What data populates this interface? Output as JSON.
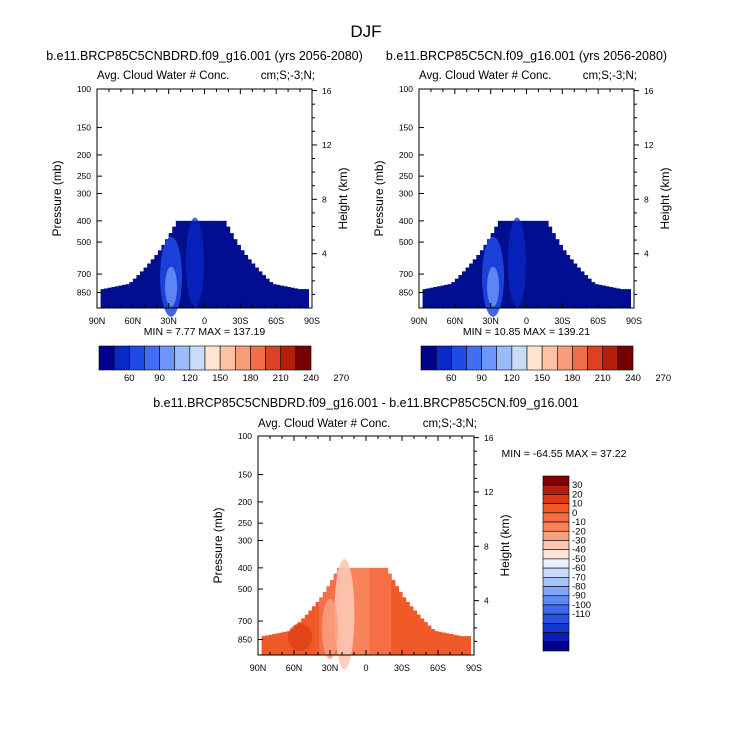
{
  "figure_title": "DJF",
  "colors": {
    "deep_blue": "#000e8f",
    "abs_scale": [
      "#00008c",
      "#0a28c8",
      "#1e4be6",
      "#416ef5",
      "#6e96fa",
      "#9bbaf8",
      "#c8dcf8",
      "#ffe6d2",
      "#fdc3a5",
      "#f89b78",
      "#f06e4b",
      "#dc4123",
      "#b41e0a",
      "#780000"
    ],
    "diff_scale": [
      "#00008c",
      "#0a1eb4",
      "#1437d2",
      "#2850e6",
      "#4169f0",
      "#5f87f5",
      "#82a5fa",
      "#a5c3fa",
      "#c8dcfa",
      "#e6f0fa",
      "#fde6d7",
      "#fcc8b4",
      "#faa082",
      "#f8825a",
      "#f56e46",
      "#f05a28",
      "#dc3c14",
      "#b41e0a",
      "#820000"
    ]
  },
  "chart_data": [
    {
      "id": "panel1",
      "type": "heatmap",
      "title": "b.e11.BRCP85C5CNBDRD.f09_g16.001 (yrs 2056-2080)",
      "subtitle_left": "Avg. Cloud Water # Conc.",
      "subtitle_right": "cm;S;-3;N;",
      "ylabel": "Pressure (mb)",
      "ylabel_right": "Height (km)",
      "xticks": [
        "90N",
        "60N",
        "30N",
        "0",
        "30S",
        "60S",
        "90S"
      ],
      "x_values": [
        90,
        60,
        30,
        0,
        -30,
        -60,
        -90
      ],
      "yticks_left": [
        "100",
        "150",
        "200",
        "250",
        "300",
        "400",
        "500",
        "700",
        "850"
      ],
      "y_values_left": [
        100,
        150,
        200,
        250,
        300,
        400,
        500,
        700,
        850
      ],
      "yticks_right": [
        "4",
        "8",
        "12",
        "16"
      ],
      "y_values_right": [
        4,
        8,
        12,
        16
      ],
      "ylim_pressure": [
        100,
        1000
      ],
      "stats_text": "MIN =  7.77  MAX = 137.19",
      "min": 7.77,
      "max": 137.19,
      "top_pressure": 400,
      "colorbar_labels": [
        "60",
        "90",
        "120",
        "150",
        "180",
        "210",
        "240",
        "270"
      ]
    },
    {
      "id": "panel2",
      "type": "heatmap",
      "title": "b.e11.BRCP85C5CN.f09_g16.001 (yrs 2056-2080)",
      "subtitle_left": "Avg. Cloud Water # Conc.",
      "subtitle_right": "cm;S;-3;N;",
      "ylabel": "Pressure (mb)",
      "ylabel_right": "Height (km)",
      "xticks": [
        "90N",
        "60N",
        "30N",
        "0",
        "30S",
        "60S",
        "90S"
      ],
      "x_values": [
        90,
        60,
        30,
        0,
        -30,
        -60,
        -90
      ],
      "yticks_left": [
        "100",
        "150",
        "200",
        "250",
        "300",
        "400",
        "500",
        "700",
        "850"
      ],
      "y_values_left": [
        100,
        150,
        200,
        250,
        300,
        400,
        500,
        700,
        850
      ],
      "yticks_right": [
        "4",
        "8",
        "12",
        "16"
      ],
      "y_values_right": [
        4,
        8,
        12,
        16
      ],
      "ylim_pressure": [
        100,
        1000
      ],
      "stats_text": "MIN = 10.85  MAX = 139.21",
      "min": 10.85,
      "max": 139.21,
      "top_pressure": 400,
      "colorbar_labels": [
        "60",
        "90",
        "120",
        "150",
        "180",
        "210",
        "240",
        "270"
      ]
    },
    {
      "id": "panel3",
      "type": "heatmap",
      "title": "b.e11.BRCP85C5CNBDRD.f09_g16.001 - b.e11.BRCP85C5CN.f09_g16.001",
      "subtitle_left": "Avg. Cloud Water # Conc.",
      "subtitle_right": "cm;S;-3;N;",
      "ylabel": "Pressure (mb)",
      "ylabel_right": "Height (km)",
      "xticks": [
        "90N",
        "60N",
        "30N",
        "0",
        "30S",
        "60S",
        "90S"
      ],
      "x_values": [
        90,
        60,
        30,
        0,
        -30,
        -60,
        -90
      ],
      "yticks_left": [
        "100",
        "150",
        "200",
        "250",
        "300",
        "400",
        "500",
        "700",
        "850"
      ],
      "y_values_left": [
        100,
        150,
        200,
        250,
        300,
        400,
        500,
        700,
        850
      ],
      "yticks_right": [
        "4",
        "8",
        "12",
        "16"
      ],
      "y_values_right": [
        4,
        8,
        12,
        16
      ],
      "ylim_pressure": [
        100,
        1000
      ],
      "stats_text": "MIN = -64.55  MAX =  37.22",
      "min": -64.55,
      "max": 37.22,
      "top_pressure": 400,
      "colorbar_labels": [
        "30",
        "20",
        "10",
        "0",
        "-10",
        "-20",
        "-30",
        "-40",
        "-50",
        "-60",
        "-70",
        "-80",
        "-90",
        "-100",
        "-110"
      ]
    }
  ]
}
